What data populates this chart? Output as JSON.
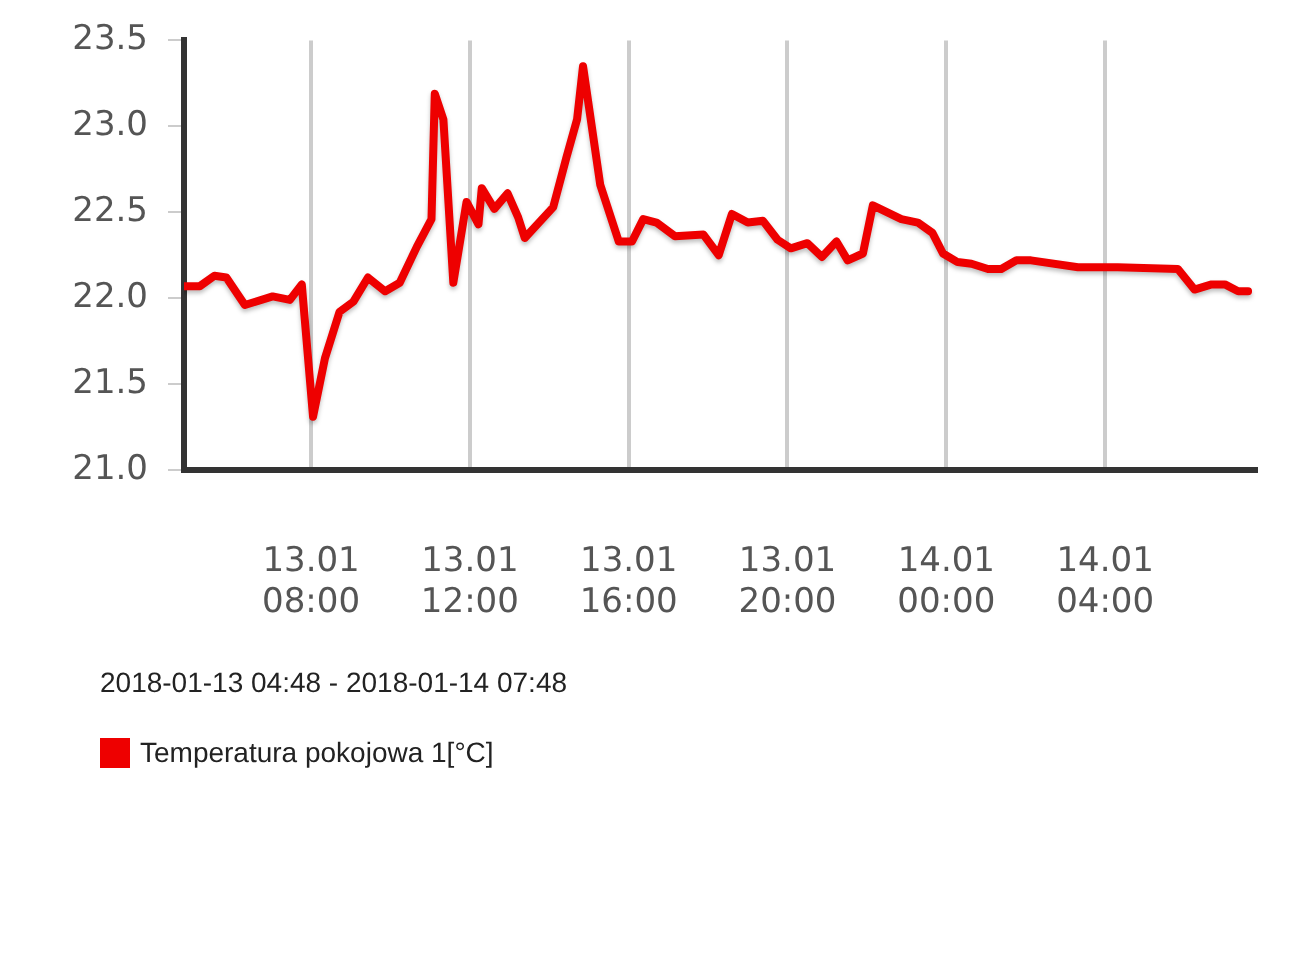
{
  "chart_data": {
    "type": "line",
    "annotations": [
      "2018-01-13 04:48 - 2018-01-14 07:48"
    ],
    "x": [
      "2018-01-13T04:48",
      "2018-01-13T05:12",
      "2018-01-13T05:34",
      "2018-01-13T05:52",
      "2018-01-13T06:20",
      "2018-01-13T07:02",
      "2018-01-13T07:28",
      "2018-01-13T07:46",
      "2018-01-13T08:03",
      "2018-01-13T08:21",
      "2018-01-13T08:43",
      "2018-01-13T09:04",
      "2018-01-13T09:26",
      "2018-01-13T09:52",
      "2018-01-13T10:14",
      "2018-01-13T10:40",
      "2018-01-13T11:02",
      "2018-01-13T11:07",
      "2018-01-13T11:20",
      "2018-01-13T11:35",
      "2018-01-13T11:55",
      "2018-01-13T12:13",
      "2018-01-13T12:18",
      "2018-01-13T12:37",
      "2018-01-13T12:57",
      "2018-01-13T13:13",
      "2018-01-13T13:23",
      "2018-01-13T14:06",
      "2018-01-13T14:26",
      "2018-01-13T14:42",
      "2018-01-13T14:51",
      "2018-01-13T15:17",
      "2018-01-13T15:45",
      "2018-01-13T16:05",
      "2018-01-13T16:22",
      "2018-01-13T16:42",
      "2018-01-13T17:10",
      "2018-01-13T17:53",
      "2018-01-13T18:16",
      "2018-01-13T18:36",
      "2018-01-13T19:00",
      "2018-01-13T19:23",
      "2018-01-13T19:45",
      "2018-01-13T20:05",
      "2018-01-13T20:30",
      "2018-01-13T20:52",
      "2018-01-13T21:14",
      "2018-01-13T21:31",
      "2018-01-13T21:54",
      "2018-01-13T22:09",
      "2018-01-13T22:52",
      "2018-01-13T23:17",
      "2018-01-13T23:39",
      "2018-01-13T23:55",
      "2018-01-14T00:17",
      "2018-01-14T00:38",
      "2018-01-14T01:03",
      "2018-01-14T01:23",
      "2018-01-14T01:46",
      "2018-01-14T02:08",
      "2018-01-14T03:19",
      "2018-01-14T04:19",
      "2018-01-14T05:50",
      "2018-01-14T06:15",
      "2018-01-14T06:41",
      "2018-01-14T07:01",
      "2018-01-14T07:21",
      "2018-01-14T07:36"
    ],
    "series": [
      {
        "name": "Temperatura pokojowa 1[°C]",
        "color": "#ee0000",
        "values": [
          22.07,
          22.07,
          22.13,
          22.12,
          21.96,
          22.01,
          21.99,
          22.08,
          21.31,
          21.65,
          21.92,
          21.98,
          22.12,
          22.04,
          22.09,
          22.3,
          22.46,
          23.19,
          23.04,
          22.09,
          22.56,
          22.43,
          22.64,
          22.52,
          22.61,
          22.47,
          22.35,
          22.53,
          22.82,
          23.04,
          23.35,
          22.66,
          22.33,
          22.33,
          22.46,
          22.44,
          22.36,
          22.37,
          22.25,
          22.49,
          22.44,
          22.45,
          22.34,
          22.29,
          22.32,
          22.24,
          22.33,
          22.22,
          22.26,
          22.54,
          22.46,
          22.44,
          22.38,
          22.26,
          22.21,
          22.2,
          22.17,
          22.17,
          22.22,
          22.22,
          22.18,
          22.18,
          22.17,
          22.05,
          22.08,
          22.08,
          22.04,
          22.04
        ]
      }
    ],
    "xlim": [
      "2018-01-13T04:48",
      "2018-01-14T07:48"
    ],
    "xticks": [
      {
        "value": "2018-01-13T08:00",
        "label": "13.01 08:00"
      },
      {
        "value": "2018-01-13T12:00",
        "label": "13.01 12:00"
      },
      {
        "value": "2018-01-13T16:00",
        "label": "13.01 16:00"
      },
      {
        "value": "2018-01-13T20:00",
        "label": "13.01 20:00"
      },
      {
        "value": "2018-01-14T00:00",
        "label": "14.01 00:00"
      },
      {
        "value": "2018-01-14T04:00",
        "label": "14.01 04:00"
      }
    ],
    "ylim": [
      21,
      23.5
    ],
    "yticks": [
      {
        "value": 21,
        "label": "21.0"
      },
      {
        "value": 21.5,
        "label": "21.5"
      },
      {
        "value": 22,
        "label": "22.0"
      },
      {
        "value": 22.5,
        "label": "22.5"
      },
      {
        "value": 23,
        "label": "23.0"
      },
      {
        "value": 23.5,
        "label": "23.5"
      }
    ],
    "grid": "x",
    "legend": "bottom",
    "marker": "none",
    "line_style": "solid"
  }
}
